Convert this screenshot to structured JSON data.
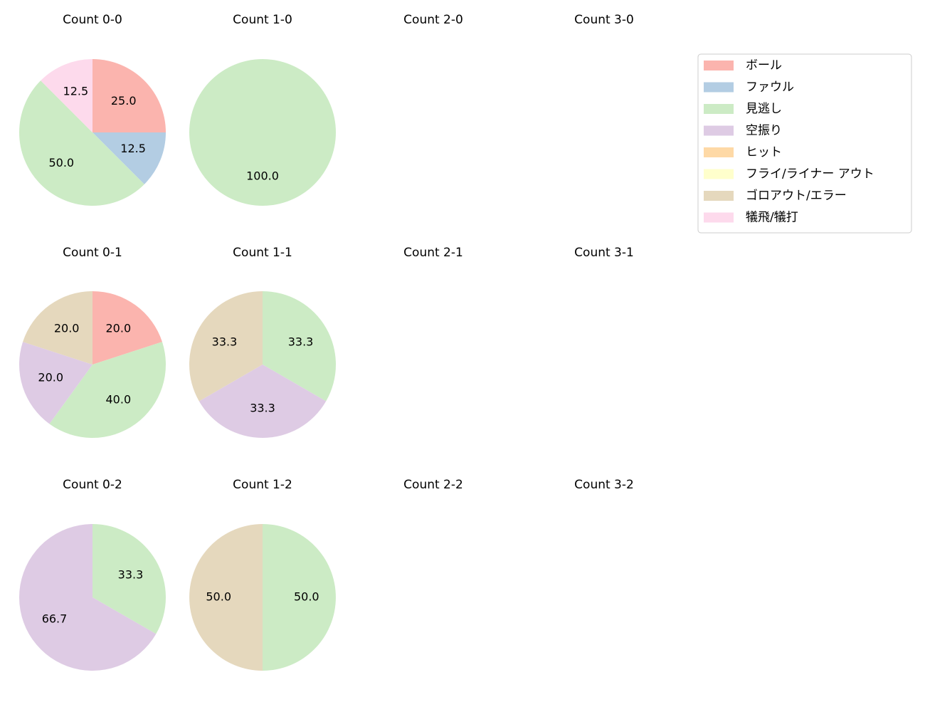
{
  "chart_data": [
    {
      "type": "pie",
      "title": "Count 0-0",
      "categories": [
        "ボール",
        "ファウル",
        "見逃し",
        "犠飛/犠打"
      ],
      "values": [
        25,
        12.5,
        50,
        12.5
      ],
      "value_labels": [
        "25.0",
        "12.5",
        "50.0",
        "12.5"
      ]
    },
    {
      "type": "pie",
      "title": "Count 1-0",
      "categories": [
        "見逃し"
      ],
      "values": [
        100
      ],
      "value_labels": [
        "100.0"
      ]
    },
    {
      "type": "pie",
      "title": "Count 2-0",
      "categories": [],
      "values": []
    },
    {
      "type": "pie",
      "title": "Count 3-0",
      "categories": [],
      "values": []
    },
    {
      "type": "pie",
      "title": "Count 0-1",
      "categories": [
        "ボール",
        "見逃し",
        "空振り",
        "ゴロアウト/エラー"
      ],
      "values": [
        20,
        40,
        20,
        20
      ],
      "value_labels": [
        "20.0",
        "40.0",
        "20.0",
        "20.0"
      ]
    },
    {
      "type": "pie",
      "title": "Count 1-1",
      "categories": [
        "見逃し",
        "空振り",
        "ゴロアウト/エラー"
      ],
      "values": [
        33.3,
        33.3,
        33.3
      ],
      "value_labels": [
        "33.3",
        "33.3",
        "33.3"
      ]
    },
    {
      "type": "pie",
      "title": "Count 2-1",
      "categories": [],
      "values": []
    },
    {
      "type": "pie",
      "title": "Count 3-1",
      "categories": [],
      "values": []
    },
    {
      "type": "pie",
      "title": "Count 0-2",
      "categories": [
        "見逃し",
        "空振り"
      ],
      "values": [
        33.3,
        66.7
      ],
      "value_labels": [
        "33.3",
        "66.7"
      ]
    },
    {
      "type": "pie",
      "title": "Count 1-2",
      "categories": [
        "見逃し",
        "ゴロアウト/エラー"
      ],
      "values": [
        50,
        50
      ],
      "value_labels": [
        "50.0",
        "50.0"
      ]
    },
    {
      "type": "pie",
      "title": "Count 2-2",
      "categories": [],
      "values": []
    },
    {
      "type": "pie",
      "title": "Count 3-2",
      "categories": [],
      "values": []
    }
  ],
  "legend": {
    "series": [
      {
        "name": "ボール",
        "color": "#fbb4ae"
      },
      {
        "name": "ファウル",
        "color": "#b3cde3"
      },
      {
        "name": "見逃し",
        "color": "#ccebc5"
      },
      {
        "name": "空振り",
        "color": "#decbe4"
      },
      {
        "name": "ヒット",
        "color": "#fed9a6"
      },
      {
        "name": "フライ/ライナー アウト",
        "color": "#ffffcc"
      },
      {
        "name": "ゴロアウト/エラー",
        "color": "#e5d8bd"
      },
      {
        "name": "犠飛/犠打",
        "color": "#fddaec"
      }
    ]
  }
}
